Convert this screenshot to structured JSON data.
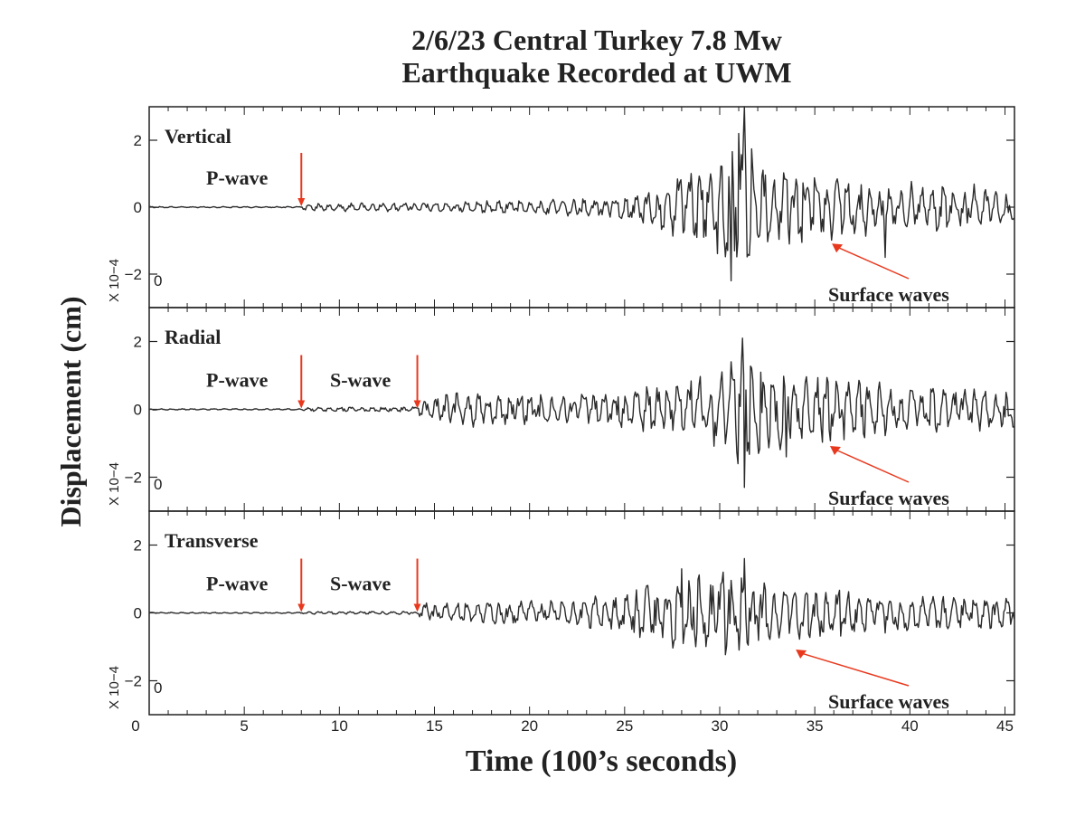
{
  "title_line1": "2/6/23 Central Turkey 7.8 Mw",
  "title_line2": "Earthquake Recorded at UWM",
  "ylabel": "Displacement (cm)",
  "xlabel": "Time (100’s seconds)",
  "colors": {
    "trace": "#2b2b2b",
    "arrow": "#e8391e",
    "axis": "#222222"
  },
  "chart_data": {
    "type": "line",
    "xlim": [
      0,
      45.5
    ],
    "ylim": [
      -3,
      3
    ],
    "x_ticks": [
      0,
      5,
      10,
      15,
      20,
      25,
      30,
      35,
      40,
      45
    ],
    "x_tick_labels": [
      "0",
      "5",
      "10",
      "15",
      "20",
      "25",
      "30",
      "35",
      "40",
      "45"
    ],
    "y_ticks": [
      2,
      0,
      -2
    ],
    "y_tick_labels": [
      "2",
      "0",
      "−2"
    ],
    "y_exponent_label": "X 10−4",
    "y_exponent_zero": "0",
    "grid": false,
    "panels": [
      {
        "name": "Vertical",
        "p_wave_time": 8.0,
        "s_wave_time": null,
        "envelope": [
          [
            0,
            0.02
          ],
          [
            8,
            0.02
          ],
          [
            8.2,
            0.12
          ],
          [
            14,
            0.15
          ],
          [
            20,
            0.22
          ],
          [
            24,
            0.35
          ],
          [
            26,
            0.55
          ],
          [
            28,
            1.0
          ],
          [
            30,
            1.55
          ],
          [
            31.2,
            2.8
          ],
          [
            32,
            1.6
          ],
          [
            33,
            1.25
          ],
          [
            36,
            1.0
          ],
          [
            40,
            0.8
          ],
          [
            45.5,
            0.7
          ]
        ],
        "spikes": [
          {
            "x": 31.3,
            "y": -2.7
          },
          {
            "x": 31.3,
            "y": 3.0
          },
          {
            "x": 30.6,
            "y": -2.2
          },
          {
            "x": 31.0,
            "y": 2.2
          },
          {
            "x": 38.7,
            "y": -1.5
          }
        ],
        "annotations": [
          {
            "text": "P-wave",
            "arrow_x": 8.0
          },
          {
            "text": "Surface waves",
            "arrow_x": 35.9,
            "arrow_y": -0.6
          }
        ]
      },
      {
        "name": "Radial",
        "p_wave_time": 8.0,
        "s_wave_time": 14.1,
        "envelope": [
          [
            0,
            0.02
          ],
          [
            8,
            0.02
          ],
          [
            8.2,
            0.06
          ],
          [
            14.1,
            0.08
          ],
          [
            14.3,
            0.45
          ],
          [
            17,
            0.55
          ],
          [
            20,
            0.45
          ],
          [
            22,
            0.45
          ],
          [
            25,
            0.55
          ],
          [
            28,
            0.9
          ],
          [
            30,
            1.3
          ],
          [
            31.2,
            1.95
          ],
          [
            32,
            1.5
          ],
          [
            33,
            1.3
          ],
          [
            36,
            1.0
          ],
          [
            40,
            0.75
          ],
          [
            45.5,
            0.6
          ]
        ],
        "spikes": [
          {
            "x": 31.3,
            "y": -2.3
          },
          {
            "x": 31.2,
            "y": 2.1
          },
          {
            "x": 33.5,
            "y": -1.4
          }
        ],
        "annotations": [
          {
            "text": "P-wave",
            "arrow_x": 8.0
          },
          {
            "text": "S-wave",
            "arrow_x": 14.1
          },
          {
            "text": "Surface waves",
            "arrow_x": 35.8,
            "arrow_y": -0.6
          }
        ]
      },
      {
        "name": "Transverse",
        "p_wave_time": 8.0,
        "s_wave_time": 14.1,
        "envelope": [
          [
            0,
            0.02
          ],
          [
            8,
            0.02
          ],
          [
            8.2,
            0.04
          ],
          [
            14.1,
            0.05
          ],
          [
            14.3,
            0.3
          ],
          [
            18,
            0.35
          ],
          [
            22,
            0.4
          ],
          [
            24,
            0.55
          ],
          [
            26,
            0.9
          ],
          [
            28,
            1.2
          ],
          [
            30,
            1.25
          ],
          [
            31.2,
            1.5
          ],
          [
            33,
            1.0
          ],
          [
            36,
            0.75
          ],
          [
            40,
            0.55
          ],
          [
            45.5,
            0.5
          ]
        ],
        "spikes": [
          {
            "x": 31.3,
            "y": -1.5
          },
          {
            "x": 31.3,
            "y": 1.6
          },
          {
            "x": 28.0,
            "y": 1.3
          }
        ],
        "annotations": [
          {
            "text": "P-wave",
            "arrow_x": 8.0
          },
          {
            "text": "S-wave",
            "arrow_x": 14.1
          },
          {
            "text": "Surface waves",
            "arrow_x": 34.0,
            "arrow_y": -0.6
          }
        ]
      }
    ]
  }
}
